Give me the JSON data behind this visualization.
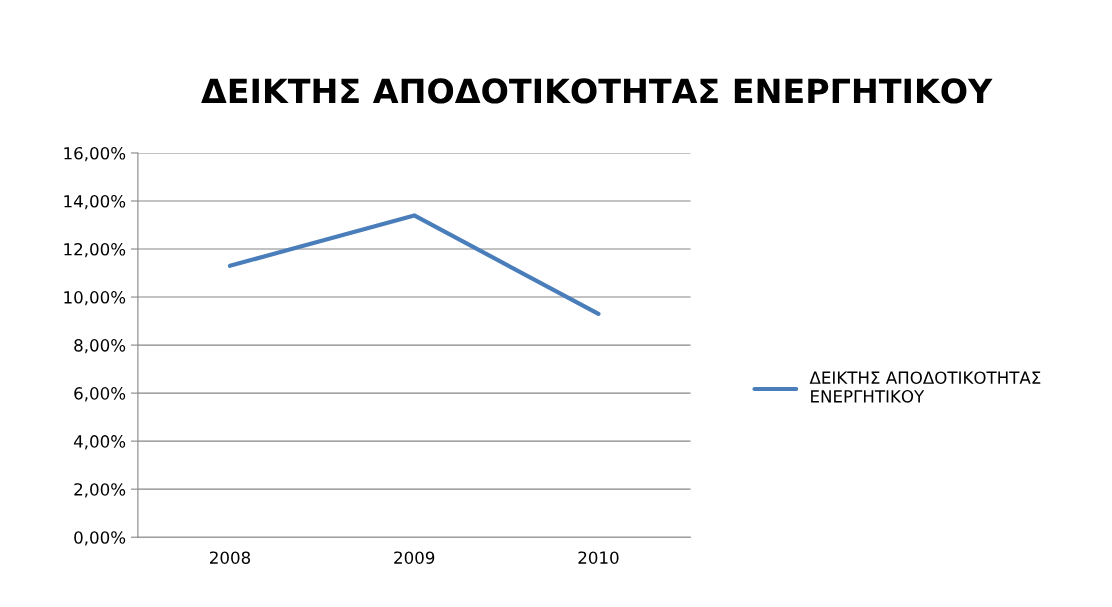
{
  "chart_data": {
    "type": "line",
    "title": "ΔΕΙΚΤΗΣ ΑΠΟΔΟΤΙΚΟΤΗΤΑΣ ΕΝΕΡΓΗΤΙΚΟΥ",
    "categories": [
      "2008",
      "2009",
      "2010"
    ],
    "series": [
      {
        "name": "ΔΕΙΚΤΗΣ ΑΠΟΔΟΤΙΚΟΤΗΤΑΣ ΕΝΕΡΓΗΤΙΚΟΥ",
        "color": "#4a7ebb",
        "values": [
          0.113,
          0.134,
          0.093
        ]
      }
    ],
    "ylim": [
      0,
      0.16
    ],
    "yticks": [
      {
        "value": 0,
        "label": "0,00%"
      },
      {
        "value": 0.02,
        "label": "2,00%"
      },
      {
        "value": 0.04,
        "label": "4,00%"
      },
      {
        "value": 0.06,
        "label": "6,00%"
      },
      {
        "value": 0.08,
        "label": "8,00%"
      },
      {
        "value": 0.1,
        "label": "10,00%"
      },
      {
        "value": 0.12,
        "label": "12,00%"
      },
      {
        "value": 0.14,
        "label": "14,00%"
      },
      {
        "value": 0.16,
        "label": "16,00%"
      }
    ],
    "grid": "y",
    "legend": "right",
    "marker": "none",
    "line_style": "solid"
  }
}
